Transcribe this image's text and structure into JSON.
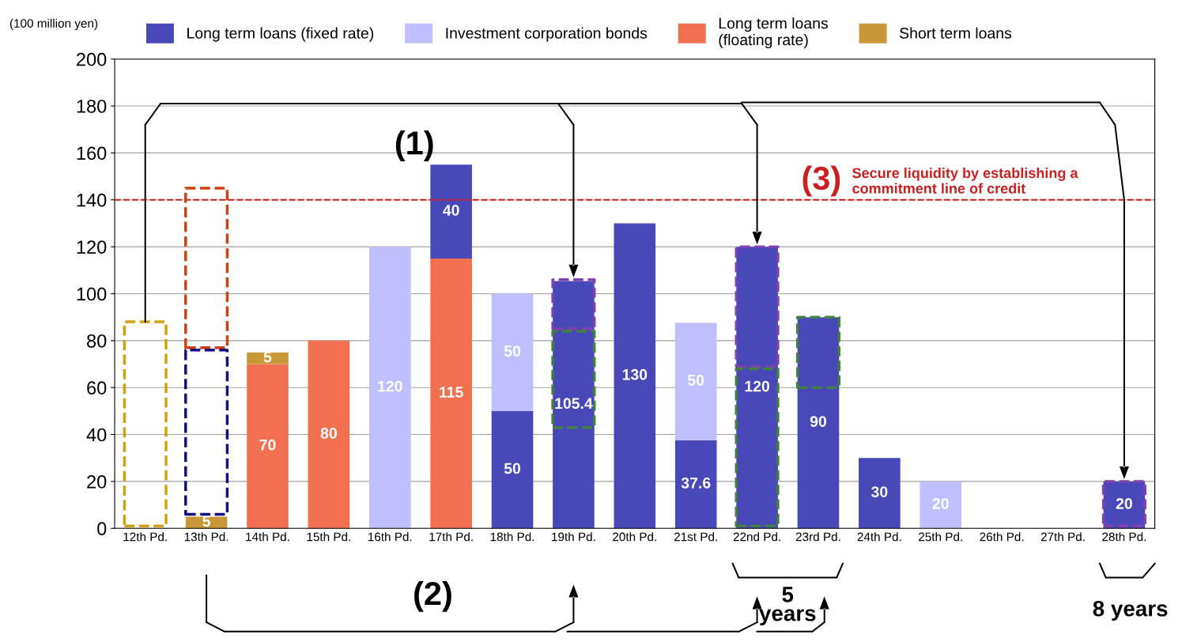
{
  "chart_data": {
    "type": "bar",
    "stacked": true,
    "ylabel": "(100 million yen)",
    "categories": [
      "12th Pd.",
      "13th Pd.",
      "14th Pd.",
      "15th Pd.",
      "16th Pd.",
      "17th Pd.",
      "18th Pd.",
      "19th Pd.",
      "20th Pd.",
      "21st Pd.",
      "22nd Pd.",
      "23rd Pd.",
      "24th Pd.",
      "25th Pd.",
      "26th Pd.",
      "27th Pd.",
      "28th Pd."
    ],
    "series": [
      {
        "name": "Long term loans\n(floating rate)",
        "color": "#f07050",
        "values": [
          null,
          null,
          70,
          80,
          null,
          115,
          null,
          null,
          null,
          null,
          null,
          null,
          null,
          null,
          null,
          null,
          null
        ]
      },
      {
        "name": "Long term loans (fixed rate)",
        "color": "#4848b8",
        "values": [
          null,
          null,
          null,
          null,
          null,
          40,
          50,
          105.4,
          130,
          37.6,
          120,
          90,
          30,
          null,
          null,
          null,
          20
        ]
      },
      {
        "name": "Investment corporation bonds",
        "color": "#c0c0ff",
        "values": [
          null,
          null,
          null,
          null,
          120,
          null,
          50,
          null,
          null,
          50,
          null,
          null,
          null,
          20,
          null,
          null,
          null
        ]
      },
      {
        "name": "Short term loans",
        "color": "#c89838",
        "values": [
          null,
          5,
          5,
          null,
          null,
          null,
          null,
          null,
          null,
          null,
          null,
          null,
          null,
          null,
          null,
          null,
          null
        ]
      }
    ],
    "data_labels": true,
    "ylim": [
      0,
      200
    ],
    "yticks": [
      0,
      20,
      40,
      60,
      80,
      100,
      120,
      140,
      160,
      180,
      200
    ],
    "grid": "y",
    "legend": "top",
    "ref_lines": [
      {
        "axis": "y",
        "value": 140,
        "label": "Secure liquidity by establishing a\ncommitment line of credit",
        "color": "#cc2020",
        "line_style": "dashed"
      }
    ],
    "annotations": [
      "(1)",
      "(2)",
      "(3)",
      "5\nyears",
      "8 years"
    ]
  }
}
